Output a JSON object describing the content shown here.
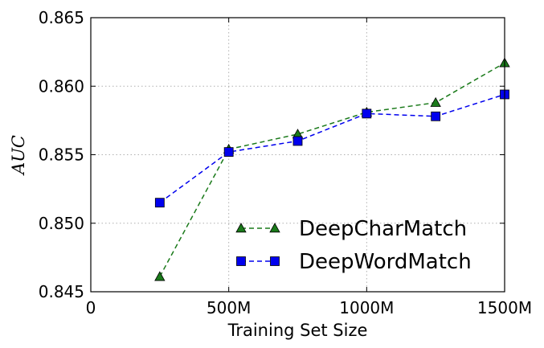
{
  "chart_data": {
    "type": "line",
    "title": "",
    "xlabel": "Training Set Size",
    "ylabel": "AUC",
    "xlim": [
      0,
      1500
    ],
    "ylim": [
      0.845,
      0.865
    ],
    "x_ticks": [
      0,
      500,
      1000,
      1500
    ],
    "x_tick_labels": [
      "0",
      "500M",
      "1000M",
      "1500M"
    ],
    "y_ticks": [
      0.845,
      0.85,
      0.855,
      0.86,
      0.865
    ],
    "y_tick_labels": [
      "0.845",
      "0.850",
      "0.855",
      "0.860",
      "0.865"
    ],
    "grid": true,
    "legend_position": "lower-right",
    "series": [
      {
        "name": "DeepCharMatch",
        "color": "#1a7a1a",
        "marker": "triangle",
        "line_style": "dashed",
        "x": [
          250,
          500,
          750,
          1000,
          1250,
          1500
        ],
        "y": [
          0.8461,
          0.8554,
          0.8565,
          0.8581,
          0.8588,
          0.8617
        ]
      },
      {
        "name": "DeepWordMatch",
        "color": "#0000ee",
        "marker": "square",
        "line_style": "dashed",
        "x": [
          250,
          500,
          750,
          1000,
          1250,
          1500
        ],
        "y": [
          0.8515,
          0.8552,
          0.856,
          0.858,
          0.8578,
          0.8594
        ]
      }
    ]
  }
}
